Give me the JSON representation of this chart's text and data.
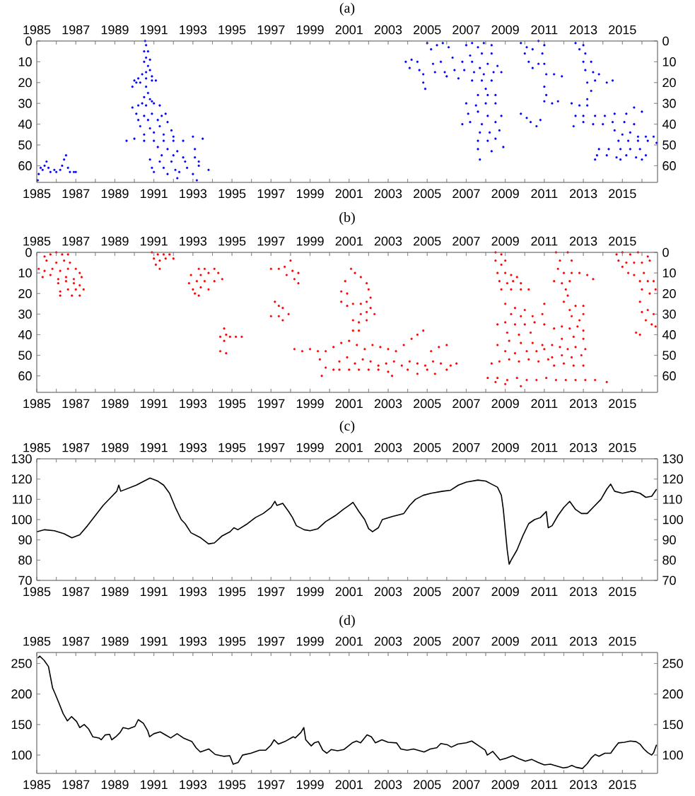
{
  "chart_data": [
    {
      "type": "scatter",
      "title": "(a)",
      "color": "#0000ff",
      "marker": "circle",
      "x": [
        1985.05,
        1985.1,
        1985.2,
        1985.3,
        1985.4,
        1985.5,
        1985.6,
        1985.7,
        1985.9,
        1986.0,
        1986.2,
        1986.3,
        1986.4,
        1986.5,
        1986.6,
        1986.7,
        1986.9,
        1987.0,
        1990.55,
        1990.6,
        1990.5,
        1990.7,
        1990.6,
        1990.8,
        1990.5,
        1990.7,
        1990.6,
        1990.8,
        1990.4,
        1990.9,
        1990.2,
        1990.6,
        1990.0,
        1990.3,
        1990.9,
        1991.1,
        1989.9,
        1990.1,
        1990.6,
        1990.7,
        1990.5,
        1990.8,
        1990.4,
        1990.9,
        1991.0,
        1989.9,
        1990.2,
        1990.6,
        1991.3,
        1990.1,
        1990.5,
        1990.9,
        1991.4,
        1991.6,
        1990.2,
        1990.7,
        1991.2,
        1991.7,
        1990.3,
        1990.8,
        1991.3,
        1991.9,
        1990.5,
        1991.0,
        1991.5,
        1992.0,
        1989.6,
        1990.0,
        1990.5,
        1991.0,
        1991.5,
        1992.0,
        1992.5,
        1993.0,
        1993.5,
        1991.2,
        1991.7,
        1992.2,
        1993.1,
        1991.4,
        1992.0,
        1992.5,
        1993.1,
        1990.8,
        1991.3,
        1991.9,
        1992.6,
        1993.3,
        1990.9,
        1991.5,
        1992.1,
        1992.7,
        1993.3,
        1993.8,
        1991.0,
        1991.7,
        1992.3,
        1993.0,
        1992.2,
        1993.2,
        2003.9,
        2004.2,
        2004.5,
        2004.1,
        2004.6,
        2004.8,
        2004.8,
        2004.9,
        2005.0,
        2005.2,
        2005.5,
        2005.8,
        2006.1,
        2005.3,
        2005.7,
        2005.4,
        2005.9,
        2006.0,
        2006.3,
        2006.4,
        2006.6,
        2006.8,
        2006.9,
        2007.0,
        2007.3,
        2007.6,
        2007.9,
        2008.3,
        2007.2,
        2007.8,
        2008.3,
        2007.3,
        2007.7,
        2008.1,
        2008.6,
        2007.4,
        2007.9,
        2008.4,
        2008.8,
        2007.3,
        2007.8,
        2008.3,
        2008.0,
        2007.6,
        2008.1,
        2008.5,
        2007.0,
        2007.5,
        2008.0,
        2008.5,
        2007.1,
        2007.6,
        2008.1,
        2008.8,
        2006.8,
        2007.2,
        2007.8,
        2008.5,
        2007.7,
        2008.2,
        2008.7,
        2007.6,
        2008.1,
        2008.5,
        2008.9,
        2007.6,
        2008.3,
        2007.7,
        2009.8,
        2010.1,
        2010.0,
        2010.4,
        2010.7,
        2011.0,
        2010.9,
        2010.2,
        2010.4,
        2010.7,
        2011.0,
        2011.1,
        2011.5,
        2011.9,
        2011.0,
        2011.1,
        2011.0,
        2011.4,
        2011.7,
        2009.8,
        2010.1,
        2010.3,
        2010.6,
        2010.8,
        2012.6,
        2012.8,
        2013.0,
        2013.1,
        2013.0,
        2013.4,
        2013.1,
        2013.5,
        2013.8,
        2014.2,
        2014.5,
        2013.2,
        2013.6,
        2013.4,
        2013.2,
        2012.4,
        2012.8,
        2013.2,
        2012.6,
        2013.0,
        2013.6,
        2014.1,
        2014.6,
        2015.2,
        2015.6,
        2016.0,
        2012.5,
        2013.0,
        2013.5,
        2014.0,
        2014.5,
        2015.1,
        2015.6,
        2014.6,
        2015.0,
        2015.4,
        2015.8,
        2016.2,
        2016.6,
        2014.8,
        2015.3,
        2015.8,
        2016.3,
        2016.75,
        2013.8,
        2014.3,
        2014.9,
        2015.4,
        2015.9,
        2013.7,
        2014.2,
        2014.7,
        2015.2,
        2015.7,
        2016.2,
        2013.6,
        2014.9,
        2016.0
      ],
      "values": [
        67,
        64,
        61,
        62,
        60,
        58,
        61,
        63,
        62,
        63,
        62,
        60,
        57,
        55,
        61,
        63,
        63,
        63,
        0,
        2,
        5,
        5,
        8,
        9,
        10,
        12,
        15,
        14,
        16,
        17,
        18,
        18,
        19,
        20,
        19,
        19,
        22,
        20,
        22,
        25,
        27,
        28,
        30,
        29,
        30,
        32,
        31,
        31,
        31,
        35,
        36,
        35,
        36,
        35,
        38,
        38,
        38,
        39,
        41,
        42,
        41,
        43,
        45,
        44,
        45,
        46,
        48,
        47,
        48,
        48,
        48,
        48,
        48,
        46,
        47,
        51,
        52,
        53,
        52,
        55,
        55,
        56,
        56,
        57,
        58,
        58,
        58,
        58,
        61,
        61,
        62,
        61,
        60,
        62,
        63,
        64,
        63,
        64,
        66,
        67,
        10,
        9,
        10,
        13,
        14,
        16,
        20,
        23,
        1,
        4,
        2,
        1,
        3,
        11,
        10,
        15,
        15,
        17,
        8,
        14,
        18,
        10,
        14,
        2,
        1,
        3,
        1,
        2,
        7,
        6,
        6,
        10,
        13,
        11,
        12,
        15,
        16,
        15,
        15,
        19,
        19,
        19,
        23,
        26,
        26,
        26,
        30,
        31,
        30,
        30,
        35,
        34,
        36,
        36,
        40,
        39,
        40,
        39,
        44,
        44,
        43,
        48,
        48,
        47,
        51,
        52,
        53,
        57,
        1,
        3,
        6,
        4,
        0,
        2,
        6,
        10,
        13,
        11,
        11,
        16,
        16,
        17,
        22,
        26,
        29,
        30,
        29,
        35,
        37,
        39,
        41,
        38,
        1,
        4,
        2,
        6,
        10,
        10,
        14,
        15,
        16,
        20,
        19,
        20,
        19,
        24,
        28,
        30,
        31,
        31,
        36,
        36,
        36,
        36,
        35,
        35,
        32,
        34,
        41,
        39,
        40,
        40,
        39,
        39,
        40,
        43,
        45,
        44,
        46,
        46,
        46,
        48,
        48,
        48,
        48,
        49,
        52,
        52,
        52,
        52,
        52,
        55,
        55,
        56,
        55,
        56,
        55,
        57,
        57,
        57
      ],
      "xlim": [
        1985,
        2016.8
      ],
      "x2lim": [
        1985,
        2016.8
      ],
      "ylim": [
        68,
        0
      ],
      "y2lim": [
        68,
        0
      ],
      "xticks": [
        1985,
        {
          "value": 1986,
          "label": null
        },
        1987,
        {
          "value": 1988,
          "label": null
        },
        1989,
        {
          "value": 1990,
          "label": null
        },
        1991,
        {
          "value": 1992,
          "label": null
        },
        1993,
        {
          "value": 1994,
          "label": null
        },
        1995,
        {
          "value": 1996,
          "label": null
        },
        1997,
        {
          "value": 1998,
          "label": null
        },
        1999,
        {
          "value": 2000,
          "label": null
        },
        2001,
        {
          "value": 2002,
          "label": null
        },
        2003,
        {
          "value": 2004,
          "label": null
        },
        2005,
        {
          "value": 2006,
          "label": null
        },
        2007,
        {
          "value": 2008,
          "label": null
        },
        2009,
        {
          "value": 2010,
          "label": null
        },
        2011,
        {
          "value": 2012,
          "label": null
        },
        2013,
        {
          "value": 2014,
          "label": null
        },
        2015,
        {
          "value": 2016,
          "label": null
        }
      ],
      "x2ticks": [
        1985,
        {
          "value": 1986,
          "label": null
        },
        1987,
        {
          "value": 1988,
          "label": null
        },
        1989,
        {
          "value": 1990,
          "label": null
        },
        1991,
        {
          "value": 1992,
          "label": null
        },
        1993,
        {
          "value": 1994,
          "label": null
        },
        1995,
        {
          "value": 1996,
          "label": null
        },
        1997,
        {
          "value": 1998,
          "label": null
        },
        1999,
        {
          "value": 2000,
          "label": null
        },
        2001,
        {
          "value": 2002,
          "label": null
        },
        2003,
        {
          "value": 2004,
          "label": null
        },
        2005,
        {
          "value": 2006,
          "label": null
        },
        2007,
        {
          "value": 2008,
          "label": null
        },
        2009,
        {
          "value": 2010,
          "label": null
        },
        2011,
        {
          "value": 2012,
          "label": null
        },
        2013,
        {
          "value": 2014,
          "label": null
        },
        2015,
        {
          "value": 2016,
          "label": null
        }
      ],
      "yticks": [
        0,
        10,
        20,
        30,
        40,
        50,
        60
      ],
      "y2ticks": [
        0,
        10,
        20,
        30,
        40,
        50,
        60
      ]
    },
    {
      "type": "scatter",
      "title": "(b)",
      "color": "#ff0000",
      "marker": "circle",
      "x": [
        1985.4,
        1985.7,
        1986.0,
        1986.3,
        1986.6,
        1985.5,
        1986.0,
        1986.4,
        1986.7,
        1985.1,
        1985.4,
        1985.8,
        1986.2,
        1986.6,
        1987.0,
        1987.2,
        1985.3,
        1985.7,
        1986.1,
        1986.5,
        1986.9,
        1987.3,
        1986.1,
        1986.5,
        1986.9,
        1987.2,
        1986.2,
        1986.6,
        1987.0,
        1987.4,
        1986.2,
        1986.8,
        1987.2,
        1990.9,
        1991.2,
        1991.5,
        1991.8,
        1992.0,
        1991.0,
        1991.3,
        1991.6,
        1991.1,
        1991.3,
        1993.3,
        1993.6,
        1994.1,
        1992.9,
        1993.4,
        1993.8,
        1994.3,
        1992.8,
        1993.2,
        1993.6,
        1994.1,
        1994.5,
        1993.0,
        1993.4,
        1993.8,
        1993.1,
        1993.3,
        1994.6,
        1994.4,
        1994.7,
        1994.6,
        1994.9,
        1995.2,
        1995.5,
        1994.4,
        1994.7,
        1997.0,
        1997.4,
        1997.7,
        1998.0,
        1998.1,
        1998.4,
        1997.8,
        1998.2,
        1998.4,
        1997.2,
        1997.4,
        1997.6,
        1997.9,
        1997.0,
        1997.4,
        1997.6,
        1998.2,
        1998.6,
        1999.0,
        1999.4,
        1999.8,
        2000.2,
        2000.6,
        2001.0,
        2001.4,
        2001.8,
        2002.2,
        2002.6,
        2003.0,
        2003.4,
        2003.8,
        2004.2,
        2004.5,
        2004.8,
        2005.2,
        2005.6,
        2006.0,
        1999.5,
        1999.8,
        1999.6,
        2000.2,
        2000.5,
        2000.9,
        2001.3,
        2001.7,
        2002.1,
        2002.5,
        2002.9,
        2003.3,
        2003.7,
        2004.1,
        2004.5,
        2004.9,
        2005.3,
        2005.7,
        2006.2,
        2006.5,
        2000.5,
        2001.0,
        2001.5,
        2002.0,
        2002.5,
        2003.0,
        2003.2,
        2004.0,
        2004.5,
        2005.0,
        2005.4,
        2006.0,
        2001.1,
        2001.3,
        2001.6,
        2001.9,
        2000.8,
        2000.6,
        2000.9,
        2002.0,
        2002.1,
        2000.6,
        2000.9,
        2001.2,
        2001.6,
        2001.9,
        2002.1,
        2001.6,
        2001.9,
        2002.3,
        2001.2,
        2001.5,
        2001.9,
        2001.2,
        2001.5,
        2008.5,
        2008.8,
        2008.5,
        2008.8,
        2009.0,
        2008.6,
        2009.0,
        2009.3,
        2009.6,
        2008.7,
        2009.1,
        2009.4,
        2009.8,
        2008.8,
        2009.3,
        2009.8,
        2010.2,
        2009.0,
        2009.5,
        2010.0,
        2011.0,
        2009.3,
        2009.8,
        2010.4,
        2010.9,
        2008.6,
        2009.0,
        2009.5,
        2010.0,
        2010.5,
        2011.0,
        2009.1,
        2009.7,
        2010.3,
        2008.6,
        2009.2,
        2009.8,
        2010.4,
        2010.9,
        2009.0,
        2009.5,
        2010.1,
        2010.6,
        2011.0,
        2008.3,
        2008.7,
        2009.2,
        2009.7,
        2010.2,
        2010.7,
        2011.2,
        2008.1,
        2008.6,
        2009.1,
        2009.6,
        2010.1,
        2010.6,
        2011.1,
        2011.6,
        2012.1,
        2012.6,
        2013.1,
        2013.6,
        2014.2,
        2009.0,
        2009.8,
        2008.5,
        2011.6,
        2011.8,
        2012.2,
        2012.4,
        2011.7,
        2012.0,
        2012.4,
        2012.8,
        2013.2,
        2013.5,
        2011.5,
        2011.9,
        2012.3,
        2012.1,
        2012.2,
        2012.0,
        2012.3,
        2012.6,
        2013.0,
        2012.4,
        2012.8,
        2013.0,
        2011.5,
        2011.9,
        2012.3,
        2012.7,
        2013.0,
        2011.9,
        2012.5,
        2013.0,
        2011.4,
        2011.8,
        2012.2,
        2012.6,
        2013.1,
        2011.4,
        2011.9,
        2012.4,
        2012.9,
        2011.5,
        2012.0,
        2012.5,
        2013.0,
        2014.7,
        2015.0,
        2015.4,
        2015.8,
        2016.3,
        2014.8,
        2015.2,
        2015.6,
        2016.0,
        2016.4,
        2015.0,
        2015.3,
        2015.6,
        2016.1,
        2015.9,
        2016.3,
        2016.6,
        2016.0,
        2016.4,
        2016.7,
        2015.9,
        2016.0,
        2016.3,
        2016.6,
        2016.2,
        2016.5,
        2016.7,
        2015.7,
        2015.9
      ],
      "values": [
        2,
        1,
        0,
        1,
        1,
        4,
        5,
        4,
        5,
        8,
        9,
        8,
        9,
        8,
        8,
        10,
        12,
        11,
        13,
        12,
        13,
        12,
        15,
        14,
        15,
        16,
        19,
        18,
        18,
        18,
        21,
        21,
        21,
        0,
        1,
        1,
        1,
        3,
        3,
        4,
        3,
        6,
        8,
        8,
        8,
        8,
        11,
        11,
        10,
        10,
        15,
        14,
        14,
        14,
        13,
        18,
        17,
        18,
        20,
        21,
        37,
        41,
        40,
        43,
        41,
        41,
        41,
        48,
        49,
        8,
        8,
        7,
        4,
        9,
        10,
        11,
        13,
        15,
        24,
        26,
        27,
        30,
        31,
        31,
        33,
        47,
        48,
        47,
        48,
        48,
        46,
        44,
        43,
        45,
        47,
        45,
        46,
        47,
        48,
        45,
        42,
        40,
        38,
        48,
        46,
        45,
        52,
        56,
        60,
        57,
        53,
        51,
        54,
        52,
        53,
        55,
        54,
        53,
        55,
        53,
        54,
        55,
        53,
        54,
        55,
        54,
        57,
        57,
        57,
        57,
        57,
        58,
        60,
        57,
        59,
        57,
        59,
        57,
        8,
        10,
        12,
        15,
        14,
        19,
        20,
        18,
        22,
        24,
        26,
        25,
        25,
        24,
        27,
        30,
        29,
        30,
        33,
        34,
        33,
        38,
        38,
        0,
        1,
        4,
        6,
        4,
        10,
        10,
        11,
        12,
        14,
        15,
        14,
        15,
        18,
        18,
        18,
        18,
        25,
        27,
        28,
        25,
        30,
        31,
        31,
        30,
        35,
        34,
        35,
        35,
        34,
        35,
        39,
        40,
        39,
        45,
        43,
        44,
        44,
        45,
        48,
        49,
        48,
        48,
        47,
        54,
        53,
        52,
        53,
        52,
        53,
        52,
        61,
        61,
        62,
        61,
        62,
        62,
        61,
        62,
        62,
        62,
        62,
        62,
        63,
        64,
        65,
        63,
        0,
        4,
        0,
        4,
        8,
        10,
        10,
        10,
        11,
        13,
        14,
        15,
        14,
        18,
        21,
        24,
        28,
        26,
        26,
        31,
        33,
        30,
        37,
        36,
        37,
        36,
        38,
        42,
        41,
        42,
        45,
        46,
        47,
        46,
        47,
        51,
        50,
        51,
        50,
        55,
        54,
        55,
        55,
        1,
        0,
        1,
        0,
        2,
        4,
        5,
        5,
        5,
        4,
        7,
        10,
        11,
        10,
        14,
        14,
        14,
        18,
        20,
        18,
        24,
        29,
        28,
        30,
        33,
        35,
        36,
        39,
        40
      ],
      "xlim": [
        1985,
        2016.8
      ],
      "x2lim": [
        1985,
        2016.8
      ],
      "ylim": [
        68,
        0
      ],
      "y2lim": [
        68,
        0
      ],
      "xticks": [
        1985,
        {
          "value": 1986,
          "label": null
        },
        1987,
        {
          "value": 1988,
          "label": null
        },
        1989,
        {
          "value": 1990,
          "label": null
        },
        1991,
        {
          "value": 1992,
          "label": null
        },
        1993,
        {
          "value": 1994,
          "label": null
        },
        1995,
        {
          "value": 1996,
          "label": null
        },
        1997,
        {
          "value": 1998,
          "label": null
        },
        1999,
        {
          "value": 2000,
          "label": null
        },
        2001,
        {
          "value": 2002,
          "label": null
        },
        2003,
        {
          "value": 2004,
          "label": null
        },
        2005,
        {
          "value": 2006,
          "label": null
        },
        2007,
        {
          "value": 2008,
          "label": null
        },
        2009,
        {
          "value": 2010,
          "label": null
        },
        2011,
        {
          "value": 2012,
          "label": null
        },
        2013,
        {
          "value": 2014,
          "label": null
        },
        2015,
        {
          "value": 2016,
          "label": null
        }
      ],
      "x2ticks": [
        1985,
        {
          "value": 1986,
          "label": null
        },
        1987,
        {
          "value": 1988,
          "label": null
        },
        1989,
        {
          "value": 1990,
          "label": null
        },
        1991,
        {
          "value": 1992,
          "label": null
        },
        1993,
        {
          "value": 1994,
          "label": null
        },
        1995,
        {
          "value": 1996,
          "label": null
        },
        1997,
        {
          "value": 1998,
          "label": null
        },
        1999,
        {
          "value": 2000,
          "label": null
        },
        2001,
        {
          "value": 2002,
          "label": null
        },
        2003,
        {
          "value": 2004,
          "label": null
        },
        2005,
        {
          "value": 2006,
          "label": null
        },
        2007,
        {
          "value": 2008,
          "label": null
        },
        2009,
        {
          "value": 2010,
          "label": null
        },
        2011,
        {
          "value": 2012,
          "label": null
        },
        2013,
        {
          "value": 2014,
          "label": null
        },
        2015,
        {
          "value": 2016,
          "label": null
        }
      ],
      "yticks": [
        0,
        10,
        20,
        30,
        40,
        50,
        60
      ],
      "y2ticks": [
        0,
        10,
        20,
        30,
        40,
        50,
        60
      ]
    },
    {
      "type": "line",
      "title": "(c)",
      "color": "#000000",
      "x": [
        1985.0,
        1985.4,
        1985.9,
        1986.4,
        1986.8,
        1987.2,
        1987.6,
        1988.0,
        1988.4,
        1988.8,
        1989.1,
        1989.2,
        1989.3,
        1989.7,
        1990.1,
        1990.5,
        1990.8,
        1991.2,
        1991.5,
        1991.8,
        1992.1,
        1992.4,
        1992.6,
        1992.9,
        1993.4,
        1993.8,
        1994.1,
        1994.5,
        1994.9,
        1995.1,
        1995.3,
        1995.8,
        1996.2,
        1996.6,
        1997.0,
        1997.2,
        1997.3,
        1997.6,
        1997.9,
        1998.1,
        1998.3,
        1998.7,
        1999.0,
        1999.4,
        1999.8,
        2000.3,
        2000.7,
        2001.0,
        2001.2,
        2001.5,
        2001.8,
        2002.0,
        2002.2,
        2002.5,
        2002.7,
        2003.2,
        2003.8,
        2004.1,
        2004.4,
        2004.8,
        2005.2,
        2005.8,
        2006.2,
        2006.6,
        2007.0,
        2007.6,
        2008.0,
        2008.3,
        2008.6,
        2008.8,
        2008.9,
        2009.0,
        2009.1,
        2009.2,
        2009.3,
        2009.6,
        2009.9,
        2010.2,
        2010.5,
        2010.8,
        2011.0,
        2011.1,
        2011.2,
        2011.4,
        2011.7,
        2012.0,
        2012.3,
        2012.6,
        2012.9,
        2013.2,
        2013.5,
        2013.9,
        2014.2,
        2014.4,
        2014.6,
        2015.0,
        2015.5,
        2015.9,
        2016.2,
        2016.5,
        2016.75
      ],
      "values": [
        94,
        95,
        94.5,
        93,
        91,
        92.5,
        97,
        102,
        107,
        111,
        114,
        117,
        114,
        115.5,
        117,
        119,
        120.5,
        119,
        117,
        113,
        106,
        100,
        98,
        93.5,
        91,
        88,
        88.5,
        92,
        94,
        96,
        95,
        98,
        101,
        103,
        106,
        109,
        107,
        108,
        104,
        101,
        97,
        95,
        94.5,
        95.5,
        99,
        102,
        105,
        107,
        108.5,
        104,
        100,
        95.5,
        94,
        96,
        100,
        101.5,
        103,
        107,
        110,
        112,
        113,
        114,
        114.5,
        117,
        118.5,
        119.5,
        119,
        117.5,
        116,
        112,
        105,
        95,
        85,
        78,
        80,
        85,
        92,
        98,
        100,
        101,
        103,
        104,
        96,
        97,
        102,
        106,
        109,
        105,
        103,
        103,
        106,
        110,
        115,
        117.5,
        114,
        113,
        114,
        113,
        111,
        111.5,
        115
      ],
      "xlim": [
        1985,
        2016.8
      ],
      "x2lim": [
        1985,
        2016.8
      ],
      "ylim": [
        70,
        130
      ],
      "y2lim": [
        70,
        130
      ],
      "xticks": [
        1985,
        {
          "value": 1986,
          "label": null
        },
        1987,
        {
          "value": 1988,
          "label": null
        },
        1989,
        {
          "value": 1990,
          "label": null
        },
        1991,
        {
          "value": 1992,
          "label": null
        },
        1993,
        {
          "value": 1994,
          "label": null
        },
        1995,
        {
          "value": 1996,
          "label": null
        },
        1997,
        {
          "value": 1998,
          "label": null
        },
        1999,
        {
          "value": 2000,
          "label": null
        },
        2001,
        {
          "value": 2002,
          "label": null
        },
        2003,
        {
          "value": 2004,
          "label": null
        },
        2005,
        {
          "value": 2006,
          "label": null
        },
        2007,
        {
          "value": 2008,
          "label": null
        },
        2009,
        {
          "value": 2010,
          "label": null
        },
        2011,
        {
          "value": 2012,
          "label": null
        },
        2013,
        {
          "value": 2014,
          "label": null
        },
        2015,
        {
          "value": 2016,
          "label": null
        }
      ],
      "x2ticks": [
        1985,
        {
          "value": 1986,
          "label": null
        },
        1987,
        {
          "value": 1988,
          "label": null
        },
        1989,
        {
          "value": 1990,
          "label": null
        },
        1991,
        {
          "value": 1992,
          "label": null
        },
        1993,
        {
          "value": 1994,
          "label": null
        },
        1995,
        {
          "value": 1996,
          "label": null
        },
        1997,
        {
          "value": 1998,
          "label": null
        },
        1999,
        {
          "value": 2000,
          "label": null
        },
        2001,
        {
          "value": 2002,
          "label": null
        },
        2003,
        {
          "value": 2004,
          "label": null
        },
        2005,
        {
          "value": 2006,
          "label": null
        },
        2007,
        {
          "value": 2008,
          "label": null
        },
        2009,
        {
          "value": 2010,
          "label": null
        },
        2011,
        {
          "value": 2012,
          "label": null
        },
        2013,
        {
          "value": 2014,
          "label": null
        },
        2015,
        {
          "value": 2016,
          "label": null
        }
      ],
      "yticks": [
        70,
        80,
        90,
        100,
        110,
        120,
        130
      ],
      "y2ticks": [
        70,
        80,
        90,
        100,
        110,
        120,
        130
      ]
    },
    {
      "type": "line",
      "title": "(d)",
      "color": "#000000",
      "x": [
        1985.05,
        1985.16,
        1985.38,
        1985.6,
        1985.66,
        1985.81,
        1985.92,
        1986.14,
        1986.35,
        1986.57,
        1986.78,
        1987.04,
        1987.2,
        1987.43,
        1987.65,
        1987.87,
        1988.19,
        1988.3,
        1988.51,
        1988.73,
        1988.84,
        1989.05,
        1989.27,
        1989.42,
        1989.7,
        1990.03,
        1990.2,
        1990.46,
        1990.68,
        1990.78,
        1991.0,
        1991.32,
        1991.65,
        1991.86,
        1992.19,
        1992.51,
        1992.73,
        1992.95,
        1993.16,
        1993.38,
        1993.81,
        1994.14,
        1994.57,
        1994.89,
        1995.06,
        1995.32,
        1995.54,
        1995.97,
        1996.41,
        1996.73,
        1996.99,
        1997.16,
        1997.38,
        1997.7,
        1998.14,
        1998.24,
        1998.53,
        1998.68,
        1998.78,
        1999.06,
        1999.22,
        1999.43,
        1999.65,
        1999.86,
        2000.08,
        2000.41,
        2000.73,
        2001.16,
        2001.38,
        2001.59,
        2001.92,
        2002.14,
        2002.35,
        2002.68,
        2003.0,
        2003.43,
        2003.65,
        2003.97,
        2004.3,
        2004.62,
        2004.84,
        2005.16,
        2005.49,
        2005.7,
        2006.03,
        2006.24,
        2006.57,
        2007.0,
        2007.28,
        2007.65,
        2007.97,
        2008.08,
        2008.36,
        2008.73,
        2009.05,
        2009.38,
        2009.7,
        2010.03,
        2010.35,
        2010.68,
        2011.0,
        2011.32,
        2011.65,
        2011.97,
        2012.19,
        2012.41,
        2012.62,
        2012.95,
        2013.2,
        2013.4,
        2013.6,
        2013.8,
        2014.1,
        2014.4,
        2014.6,
        2014.8,
        2015.1,
        2015.4,
        2015.7,
        2015.9,
        2016.1,
        2016.3,
        2016.5,
        2016.6,
        2016.75
      ],
      "values": [
        259,
        262,
        255,
        245,
        235,
        210,
        202,
        185,
        168,
        156,
        163,
        155,
        145,
        150,
        143,
        130,
        128,
        125,
        133,
        134,
        125,
        130,
        137,
        145,
        143,
        147,
        158,
        152,
        140,
        130,
        135,
        138,
        132,
        128,
        135,
        128,
        125,
        122,
        112,
        105,
        110,
        101,
        98,
        99,
        85,
        88,
        100,
        103,
        108,
        108,
        116,
        125,
        118,
        122,
        130,
        128,
        137,
        145,
        125,
        115,
        120,
        122,
        108,
        103,
        109,
        107,
        109,
        120,
        123,
        120,
        133,
        130,
        120,
        125,
        121,
        120,
        110,
        108,
        110,
        107,
        105,
        110,
        112,
        119,
        117,
        113,
        118,
        120,
        123,
        115,
        108,
        100,
        106,
        92,
        95,
        99,
        94,
        90,
        93,
        88,
        84,
        85,
        82,
        79,
        80,
        83,
        80,
        78,
        86,
        95,
        101,
        98,
        103,
        103,
        112,
        120,
        121,
        123,
        122,
        118,
        110,
        104,
        100,
        104,
        117
      ],
      "xlim": [
        1985,
        2016.8
      ],
      "x2lim": [
        1985,
        2016.8
      ],
      "ylim": [
        70,
        268
      ],
      "y2lim": [
        70,
        268
      ],
      "xticks": [
        1985,
        {
          "value": 1986,
          "label": null
        },
        1987,
        {
          "value": 1988,
          "label": null
        },
        1989,
        {
          "value": 1990,
          "label": null
        },
        1991,
        {
          "value": 1992,
          "label": null
        },
        1993,
        {
          "value": 1994,
          "label": null
        },
        1995,
        {
          "value": 1996,
          "label": null
        },
        1997,
        {
          "value": 1998,
          "label": null
        },
        1999,
        {
          "value": 2000,
          "label": null
        },
        2001,
        {
          "value": 2002,
          "label": null
        },
        2003,
        {
          "value": 2004,
          "label": null
        },
        2005,
        {
          "value": 2006,
          "label": null
        },
        2007,
        {
          "value": 2008,
          "label": null
        },
        2009,
        {
          "value": 2010,
          "label": null
        },
        2011,
        {
          "value": 2012,
          "label": null
        },
        2013,
        {
          "value": 2014,
          "label": null
        },
        2015,
        {
          "value": 2016,
          "label": null
        }
      ],
      "x2ticks": [
        1985,
        {
          "value": 1986,
          "label": null
        },
        1987,
        {
          "value": 1988,
          "label": null
        },
        1989,
        {
          "value": 1990,
          "label": null
        },
        1991,
        {
          "value": 1992,
          "label": null
        },
        1993,
        {
          "value": 1994,
          "label": null
        },
        1995,
        {
          "value": 1996,
          "label": null
        },
        1997,
        {
          "value": 1998,
          "label": null
        },
        1999,
        {
          "value": 2000,
          "label": null
        },
        2001,
        {
          "value": 2002,
          "label": null
        },
        2003,
        {
          "value": 2004,
          "label": null
        },
        2005,
        {
          "value": 2006,
          "label": null
        },
        2007,
        {
          "value": 2008,
          "label": null
        },
        2009,
        {
          "value": 2010,
          "label": null
        },
        2011,
        {
          "value": 2012,
          "label": null
        },
        2013,
        {
          "value": 2014,
          "label": null
        },
        2015,
        {
          "value": 2016,
          "label": null
        }
      ],
      "yticks": [
        100,
        150,
        200,
        250
      ],
      "y2ticks": [
        100,
        150,
        200,
        250
      ]
    }
  ]
}
